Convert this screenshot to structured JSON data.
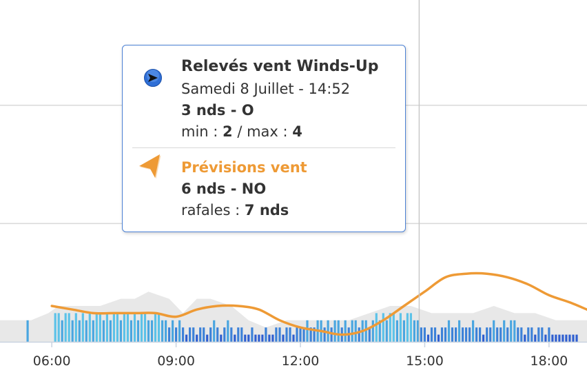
{
  "chart_data": {
    "type": "bar",
    "xlim": [
      "04:45",
      "18:55"
    ],
    "x_ticks": [
      "06:00",
      "09:00",
      "12:00",
      "15:00",
      "18:00"
    ],
    "crosshair_time": "14:52",
    "grid": true,
    "series": [
      {
        "name": "Relevés vent Winds-Up",
        "type": "bar",
        "unit": "nds",
        "color": "#4aa6e0",
        "points": [
          [
            "05:25",
            3
          ],
          [
            "06:05",
            4
          ],
          [
            "06:10",
            4
          ],
          [
            "06:15",
            3
          ],
          [
            "06:20",
            4
          ],
          [
            "06:25",
            4
          ],
          [
            "06:30",
            3
          ],
          [
            "06:35",
            4
          ],
          [
            "06:40",
            3
          ],
          [
            "06:45",
            4
          ],
          [
            "06:50",
            3
          ],
          [
            "06:55",
            4
          ],
          [
            "07:00",
            3
          ],
          [
            "07:05",
            4
          ],
          [
            "07:10",
            4
          ],
          [
            "07:15",
            3
          ],
          [
            "07:20",
            4
          ],
          [
            "07:25",
            3
          ],
          [
            "07:30",
            4
          ],
          [
            "07:35",
            4
          ],
          [
            "07:40",
            3
          ],
          [
            "07:45",
            4
          ],
          [
            "07:50",
            4
          ],
          [
            "07:55",
            3
          ],
          [
            "08:00",
            4
          ],
          [
            "08:05",
            3
          ],
          [
            "08:10",
            4
          ],
          [
            "08:15",
            4
          ],
          [
            "08:20",
            3
          ],
          [
            "08:25",
            3
          ],
          [
            "08:30",
            4
          ],
          [
            "08:35",
            4
          ],
          [
            "08:40",
            3
          ],
          [
            "08:45",
            3
          ],
          [
            "08:50",
            2
          ],
          [
            "08:55",
            3
          ],
          [
            "09:00",
            2
          ],
          [
            "09:05",
            3
          ],
          [
            "09:10",
            2
          ],
          [
            "09:15",
            1
          ],
          [
            "09:20",
            2
          ],
          [
            "09:25",
            2
          ],
          [
            "09:30",
            1
          ],
          [
            "09:35",
            2
          ],
          [
            "09:40",
            2
          ],
          [
            "09:45",
            1
          ],
          [
            "09:50",
            2
          ],
          [
            "09:55",
            3
          ],
          [
            "10:00",
            2
          ],
          [
            "10:05",
            1
          ],
          [
            "10:10",
            2
          ],
          [
            "10:15",
            3
          ],
          [
            "10:20",
            2
          ],
          [
            "10:25",
            1
          ],
          [
            "10:30",
            2
          ],
          [
            "10:35",
            2
          ],
          [
            "10:40",
            1
          ],
          [
            "10:45",
            1
          ],
          [
            "10:50",
            2
          ],
          [
            "10:55",
            1
          ],
          [
            "11:00",
            1
          ],
          [
            "11:05",
            1
          ],
          [
            "11:10",
            2
          ],
          [
            "11:15",
            1
          ],
          [
            "11:20",
            1
          ],
          [
            "11:25",
            2
          ],
          [
            "11:30",
            2
          ],
          [
            "11:35",
            1
          ],
          [
            "11:40",
            2
          ],
          [
            "11:45",
            2
          ],
          [
            "11:50",
            1
          ],
          [
            "11:55",
            2
          ],
          [
            "12:00",
            2
          ],
          [
            "12:05",
            2
          ],
          [
            "12:10",
            3
          ],
          [
            "12:15",
            2
          ],
          [
            "12:20",
            2
          ],
          [
            "12:25",
            3
          ],
          [
            "12:30",
            3
          ],
          [
            "12:35",
            2
          ],
          [
            "12:40",
            3
          ],
          [
            "12:45",
            2
          ],
          [
            "12:50",
            3
          ],
          [
            "12:55",
            3
          ],
          [
            "13:00",
            2
          ],
          [
            "13:05",
            3
          ],
          [
            "13:10",
            2
          ],
          [
            "13:15",
            3
          ],
          [
            "13:20",
            3
          ],
          [
            "13:25",
            2
          ],
          [
            "13:30",
            3
          ],
          [
            "13:35",
            3
          ],
          [
            "13:40",
            2
          ],
          [
            "13:45",
            3
          ],
          [
            "13:50",
            4
          ],
          [
            "13:55",
            3
          ],
          [
            "14:00",
            4
          ],
          [
            "14:05",
            3
          ],
          [
            "14:10",
            4
          ],
          [
            "14:15",
            4
          ],
          [
            "14:20",
            3
          ],
          [
            "14:25",
            4
          ],
          [
            "14:30",
            3
          ],
          [
            "14:35",
            4
          ],
          [
            "14:40",
            4
          ],
          [
            "14:45",
            3
          ],
          [
            "14:50",
            3
          ],
          [
            "14:55",
            2
          ],
          [
            "15:00",
            2
          ],
          [
            "15:05",
            1
          ],
          [
            "15:10",
            2
          ],
          [
            "15:15",
            2
          ],
          [
            "15:20",
            1
          ],
          [
            "15:25",
            2
          ],
          [
            "15:30",
            2
          ],
          [
            "15:35",
            3
          ],
          [
            "15:40",
            2
          ],
          [
            "15:45",
            2
          ],
          [
            "15:50",
            3
          ],
          [
            "15:55",
            2
          ],
          [
            "16:00",
            2
          ],
          [
            "16:05",
            2
          ],
          [
            "16:10",
            3
          ],
          [
            "16:15",
            2
          ],
          [
            "16:20",
            2
          ],
          [
            "16:25",
            1
          ],
          [
            "16:30",
            2
          ],
          [
            "16:35",
            2
          ],
          [
            "16:40",
            3
          ],
          [
            "16:45",
            2
          ],
          [
            "16:50",
            2
          ],
          [
            "16:55",
            3
          ],
          [
            "17:00",
            2
          ],
          [
            "17:05",
            3
          ],
          [
            "17:10",
            3
          ],
          [
            "17:15",
            2
          ],
          [
            "17:20",
            2
          ],
          [
            "17:25",
            1
          ],
          [
            "17:30",
            2
          ],
          [
            "17:35",
            2
          ],
          [
            "17:40",
            1
          ],
          [
            "17:45",
            2
          ],
          [
            "17:50",
            2
          ],
          [
            "17:55",
            1
          ],
          [
            "18:00",
            2
          ],
          [
            "18:05",
            1
          ],
          [
            "18:10",
            1
          ],
          [
            "18:15",
            1
          ],
          [
            "18:20",
            1
          ],
          [
            "18:25",
            1
          ],
          [
            "18:30",
            1
          ],
          [
            "18:35",
            1
          ],
          [
            "18:40",
            1
          ]
        ]
      },
      {
        "name": "rafales",
        "type": "area",
        "color": "#e6e6e6",
        "points": [
          [
            "04:45",
            3
          ],
          [
            "05:30",
            3
          ],
          [
            "05:55",
            4
          ],
          [
            "06:10",
            5
          ],
          [
            "06:40",
            5
          ],
          [
            "07:10",
            5
          ],
          [
            "07:40",
            6
          ],
          [
            "08:00",
            6
          ],
          [
            "08:20",
            7
          ],
          [
            "08:50",
            6
          ],
          [
            "09:10",
            4
          ],
          [
            "09:30",
            6
          ],
          [
            "09:50",
            6
          ],
          [
            "10:20",
            5
          ],
          [
            "10:45",
            3
          ],
          [
            "11:10",
            2
          ],
          [
            "11:40",
            3
          ],
          [
            "12:10",
            3
          ],
          [
            "12:40",
            3
          ],
          [
            "13:10",
            3
          ],
          [
            "13:40",
            4
          ],
          [
            "14:10",
            5
          ],
          [
            "14:40",
            5
          ],
          [
            "15:10",
            4
          ],
          [
            "15:40",
            4
          ],
          [
            "16:10",
            4
          ],
          [
            "16:40",
            5
          ],
          [
            "17:10",
            4
          ],
          [
            "17:40",
            4
          ],
          [
            "18:10",
            3
          ],
          [
            "18:55",
            3
          ]
        ]
      },
      {
        "name": "Prévisions vent",
        "type": "line",
        "unit": "nds",
        "color": "#ee9a35",
        "points": [
          [
            "06:00",
            5
          ],
          [
            "06:30",
            4.5
          ],
          [
            "07:00",
            4
          ],
          [
            "07:30",
            4
          ],
          [
            "08:00",
            4
          ],
          [
            "08:30",
            4
          ],
          [
            "09:00",
            3.5
          ],
          [
            "09:30",
            4.5
          ],
          [
            "10:00",
            5
          ],
          [
            "10:30",
            5
          ],
          [
            "11:00",
            4.5
          ],
          [
            "11:30",
            3
          ],
          [
            "12:00",
            2
          ],
          [
            "12:30",
            1.5
          ],
          [
            "13:00",
            1
          ],
          [
            "13:30",
            1.5
          ],
          [
            "14:00",
            3
          ],
          [
            "14:30",
            5
          ],
          [
            "15:00",
            7
          ],
          [
            "15:30",
            9
          ],
          [
            "16:00",
            9.5
          ],
          [
            "16:30",
            9.5
          ],
          [
            "17:00",
            9
          ],
          [
            "17:30",
            8
          ],
          [
            "18:00",
            6.5
          ],
          [
            "18:30",
            5.5
          ],
          [
            "18:55",
            4.5
          ]
        ]
      }
    ]
  },
  "tooltip": {
    "observed": {
      "title": "Relevés vent Winds-Up",
      "datetime": "Samedi 8 Juillet - 14:52",
      "speed_dir": "3 nds - O",
      "min_label": "min : ",
      "min_value": "2",
      "max_sep": " / max : ",
      "max_value": "4",
      "icon": "blue-direction-arrow-icon",
      "color": "#2f6fd6"
    },
    "forecast": {
      "title": "Prévisions vent",
      "speed_dir": "6 nds - NO",
      "gust_label": "rafales : ",
      "gust_value": "7 nds",
      "icon": "orange-direction-arrow-icon",
      "color": "#ee9a35"
    }
  }
}
